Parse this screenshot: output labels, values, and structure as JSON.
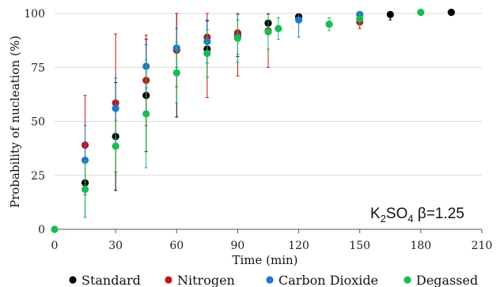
{
  "chart_data": {
    "type": "scatter",
    "xlabel": "Time (min)",
    "ylabel": "Probability of nucleation (%)",
    "xlim": [
      0,
      210
    ],
    "ylim": [
      0,
      100
    ],
    "x_ticks": [
      "0",
      "30",
      "60",
      "90",
      "120",
      "150",
      "180",
      "210"
    ],
    "y_ticks": [
      "0",
      "25",
      "50",
      "75",
      "100"
    ],
    "grid": "horizontal",
    "legend_position": "bottom",
    "annotation": {
      "prefix": "K",
      "sub1": "2",
      "mid": "SO",
      "sub2": "4",
      "suffix": " β=1.25"
    },
    "series": [
      {
        "name": "Standard",
        "color": "#000000",
        "points": [
          {
            "x": 15,
            "y": 21.5,
            "err": 16
          },
          {
            "x": 30,
            "y": 43,
            "err": 25
          },
          {
            "x": 45,
            "y": 62,
            "err": 26
          },
          {
            "x": 60,
            "y": 83,
            "err": 31
          },
          {
            "x": 75,
            "y": 83.5,
            "err": 13
          },
          {
            "x": 90,
            "y": 90,
            "err": 10
          },
          {
            "x": 105,
            "y": 95.5,
            "err": 5
          },
          {
            "x": 120,
            "y": 98.5,
            "err": 2
          },
          {
            "x": 165,
            "y": 99.5,
            "err": 2.5
          },
          {
            "x": 195,
            "y": 100.5,
            "err": 0
          }
        ]
      },
      {
        "name": "Nitrogen",
        "color": "#c0151b",
        "points": [
          {
            "x": 15,
            "y": 39,
            "err": 23
          },
          {
            "x": 30,
            "y": 58.5,
            "err": 32
          },
          {
            "x": 45,
            "y": 69,
            "err": 21
          },
          {
            "x": 60,
            "y": 83,
            "err": 17
          },
          {
            "x": 75,
            "y": 89,
            "err": 28
          },
          {
            "x": 90,
            "y": 91,
            "err": 20
          },
          {
            "x": 105,
            "y": 92,
            "err": 17
          },
          {
            "x": 150,
            "y": 96,
            "err": 3
          }
        ]
      },
      {
        "name": "Carbon Dioxide",
        "color": "#1f77c8",
        "points": [
          {
            "x": 15,
            "y": 32,
            "err": 16
          },
          {
            "x": 30,
            "y": 56,
            "err": 14
          },
          {
            "x": 45,
            "y": 75.5,
            "err": 10
          },
          {
            "x": 60,
            "y": 84,
            "err": 9
          },
          {
            "x": 75,
            "y": 87,
            "err": 10
          },
          {
            "x": 90,
            "y": 89,
            "err": 8
          },
          {
            "x": 120,
            "y": 97,
            "err": 8
          },
          {
            "x": 150,
            "y": 99.5,
            "err": 1
          }
        ]
      },
      {
        "name": "Degassed",
        "color": "#1db954",
        "points": [
          {
            "x": 0,
            "y": 0,
            "err": 0
          },
          {
            "x": 15,
            "y": 18.5,
            "err": 13
          },
          {
            "x": 30,
            "y": 38.5,
            "err": 12
          },
          {
            "x": 45,
            "y": 53.5,
            "err": 25
          },
          {
            "x": 60,
            "y": 72.5,
            "err": 14
          },
          {
            "x": 75,
            "y": 81.5,
            "err": 11
          },
          {
            "x": 90,
            "y": 88.5,
            "err": 11
          },
          {
            "x": 105,
            "y": 91.5,
            "err": 8
          },
          {
            "x": 110,
            "y": 93,
            "err": 5
          },
          {
            "x": 135,
            "y": 95,
            "err": 3
          },
          {
            "x": 150,
            "y": 97.5,
            "err": 3
          },
          {
            "x": 180,
            "y": 100.5,
            "err": 0
          }
        ]
      }
    ]
  }
}
